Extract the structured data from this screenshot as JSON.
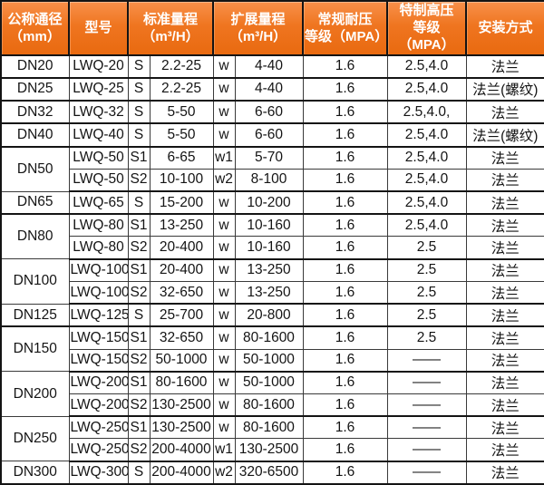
{
  "table": {
    "title_semantic": "LWQ flow meter specification table",
    "colors": {
      "header_bg": "#ee7520",
      "header_bg_light": "#f8904a",
      "header_bg_dark": "#e96a10",
      "header_text": "#ffffff",
      "border_dark": "#141414",
      "border_thin": "#3a3a3a",
      "body_text": "#141414",
      "body_bg": "#ffffff"
    },
    "columns": [
      {
        "id": "dn",
        "lines": [
          "公称通径",
          "（mm）"
        ],
        "colspan": 1
      },
      {
        "id": "model",
        "lines": [
          "型号"
        ],
        "colspan": 1
      },
      {
        "id": "std",
        "lines": [
          "标准量程",
          "（m³/H）"
        ],
        "colspan": 2
      },
      {
        "id": "ext",
        "lines": [
          "扩展量程",
          "（m³/H）"
        ],
        "colspan": 2
      },
      {
        "id": "reg",
        "lines": [
          "常规耐压",
          "等级（MPA）"
        ],
        "colspan": 1
      },
      {
        "id": "high",
        "lines": [
          "特制高压",
          "等级（MPA）"
        ],
        "colspan": 1
      },
      {
        "id": "install",
        "lines": [
          "安装方式"
        ],
        "colspan": 1
      }
    ],
    "groups": [
      {
        "dn": "DN20",
        "rows": [
          {
            "model": "LWQ-20",
            "s": "S",
            "std": "2.2-25",
            "w": "w",
            "ext": "4-40",
            "reg": "1.6",
            "high": "2.5,4.0",
            "install": "法兰"
          }
        ]
      },
      {
        "dn": "DN25",
        "rows": [
          {
            "model": "LWQ-25",
            "s": "S",
            "std": "2.2-25",
            "w": "w",
            "ext": "4-40",
            "reg": "1.6",
            "high": "2.5,4.0",
            "install": "法兰(螺纹)"
          }
        ]
      },
      {
        "dn": "DN32",
        "rows": [
          {
            "model": "LWQ-32",
            "s": "S",
            "std": "5-50",
            "w": "w",
            "ext": "6-60",
            "reg": "1.6",
            "high": "2.5,4.0,",
            "install": "法兰"
          }
        ]
      },
      {
        "dn": "DN40",
        "rows": [
          {
            "model": "LWQ-40",
            "s": "S",
            "std": "5-50",
            "w": "w",
            "ext": "6-60",
            "reg": "1.6",
            "high": "2.5,4.0",
            "install": "法兰(螺纹)"
          }
        ]
      },
      {
        "dn": "DN50",
        "rows": [
          {
            "model": "LWQ-50",
            "s": "S1",
            "std": "6-65",
            "w": "w1",
            "ext": "5-70",
            "reg": "1.6",
            "high": "2.5,4.0",
            "install": "法兰"
          },
          {
            "model": "LWQ-50",
            "s": "S2",
            "std": "10-100",
            "w": "w2",
            "ext": "8-100",
            "reg": "1.6",
            "high": "2.5,4.0",
            "install": "法兰"
          }
        ]
      },
      {
        "dn": "DN65",
        "rows": [
          {
            "model": "LWQ-65",
            "s": "S",
            "std": "15-200",
            "w": "w",
            "ext": "10-200",
            "reg": "1.6",
            "high": "2.5,4.0",
            "install": "法兰"
          }
        ]
      },
      {
        "dn": "DN80",
        "rows": [
          {
            "model": "LWQ-80",
            "s": "S1",
            "std": "13-250",
            "w": "w",
            "ext": "10-160",
            "reg": "1.6",
            "high": "2.5,4.0",
            "install": "法兰"
          },
          {
            "model": "LWQ-80",
            "s": "S2",
            "std": "20-400",
            "w": "w",
            "ext": "10-160",
            "reg": "1.6",
            "high": "2.5",
            "install": "法兰"
          }
        ]
      },
      {
        "dn": "DN100",
        "rows": [
          {
            "model": "LWQ-100",
            "s": "S1",
            "std": "20-400",
            "w": "w",
            "ext": "13-250",
            "reg": "1.6",
            "high": "2.5",
            "install": "法兰"
          },
          {
            "model": "LWQ-100",
            "s": "S2",
            "std": "32-650",
            "w": "w",
            "ext": "13-250",
            "reg": "1.6",
            "high": "2.5",
            "install": "法兰"
          }
        ]
      },
      {
        "dn": "DN125",
        "rows": [
          {
            "model": "LWQ-125",
            "s": "S",
            "std": "25-700",
            "w": "w",
            "ext": "20-800",
            "reg": "1.6",
            "high": "2.5",
            "install": "法兰"
          }
        ]
      },
      {
        "dn": "DN150",
        "rows": [
          {
            "model": "LWQ-150",
            "s": "S1",
            "std": "32-650",
            "w": "w",
            "ext": "80-1600",
            "reg": "1.6",
            "high": "2.5",
            "install": "法兰"
          },
          {
            "model": "LWQ-150",
            "s": "S2",
            "std": "50-1000",
            "w": "w",
            "ext": "50-1000",
            "reg": "1.6",
            "high": "——",
            "install": "法兰"
          }
        ]
      },
      {
        "dn": "DN200",
        "rows": [
          {
            "model": "LWQ-200",
            "s": "S1",
            "std": "80-1600",
            "w": "w",
            "ext": "50-1000",
            "reg": "1.6",
            "high": "——",
            "install": "法兰"
          },
          {
            "model": "LWQ-200",
            "s": "S2",
            "std": "130-2500",
            "w": "w",
            "ext": "80-1600",
            "reg": "1.6",
            "high": "——",
            "install": "法兰"
          }
        ]
      },
      {
        "dn": "DN250",
        "rows": [
          {
            "model": "LWQ-250",
            "s": "S1",
            "std": "130-2500",
            "w": "w",
            "ext": "80-1600",
            "reg": "1.6",
            "high": "——",
            "install": "法兰"
          },
          {
            "model": "LWQ-250",
            "s": "S2",
            "std": "200-4000",
            "w": "w1",
            "ext": "130-2500",
            "reg": "1.6",
            "high": "——",
            "install": "法兰"
          }
        ]
      },
      {
        "dn": "DN300",
        "rows": [
          {
            "model": "LWQ-300",
            "s": "S",
            "std": "200-4000",
            "w": "w2",
            "ext": "320-6500",
            "reg": "1.6",
            "high": "——",
            "install": "法兰"
          }
        ]
      }
    ]
  }
}
